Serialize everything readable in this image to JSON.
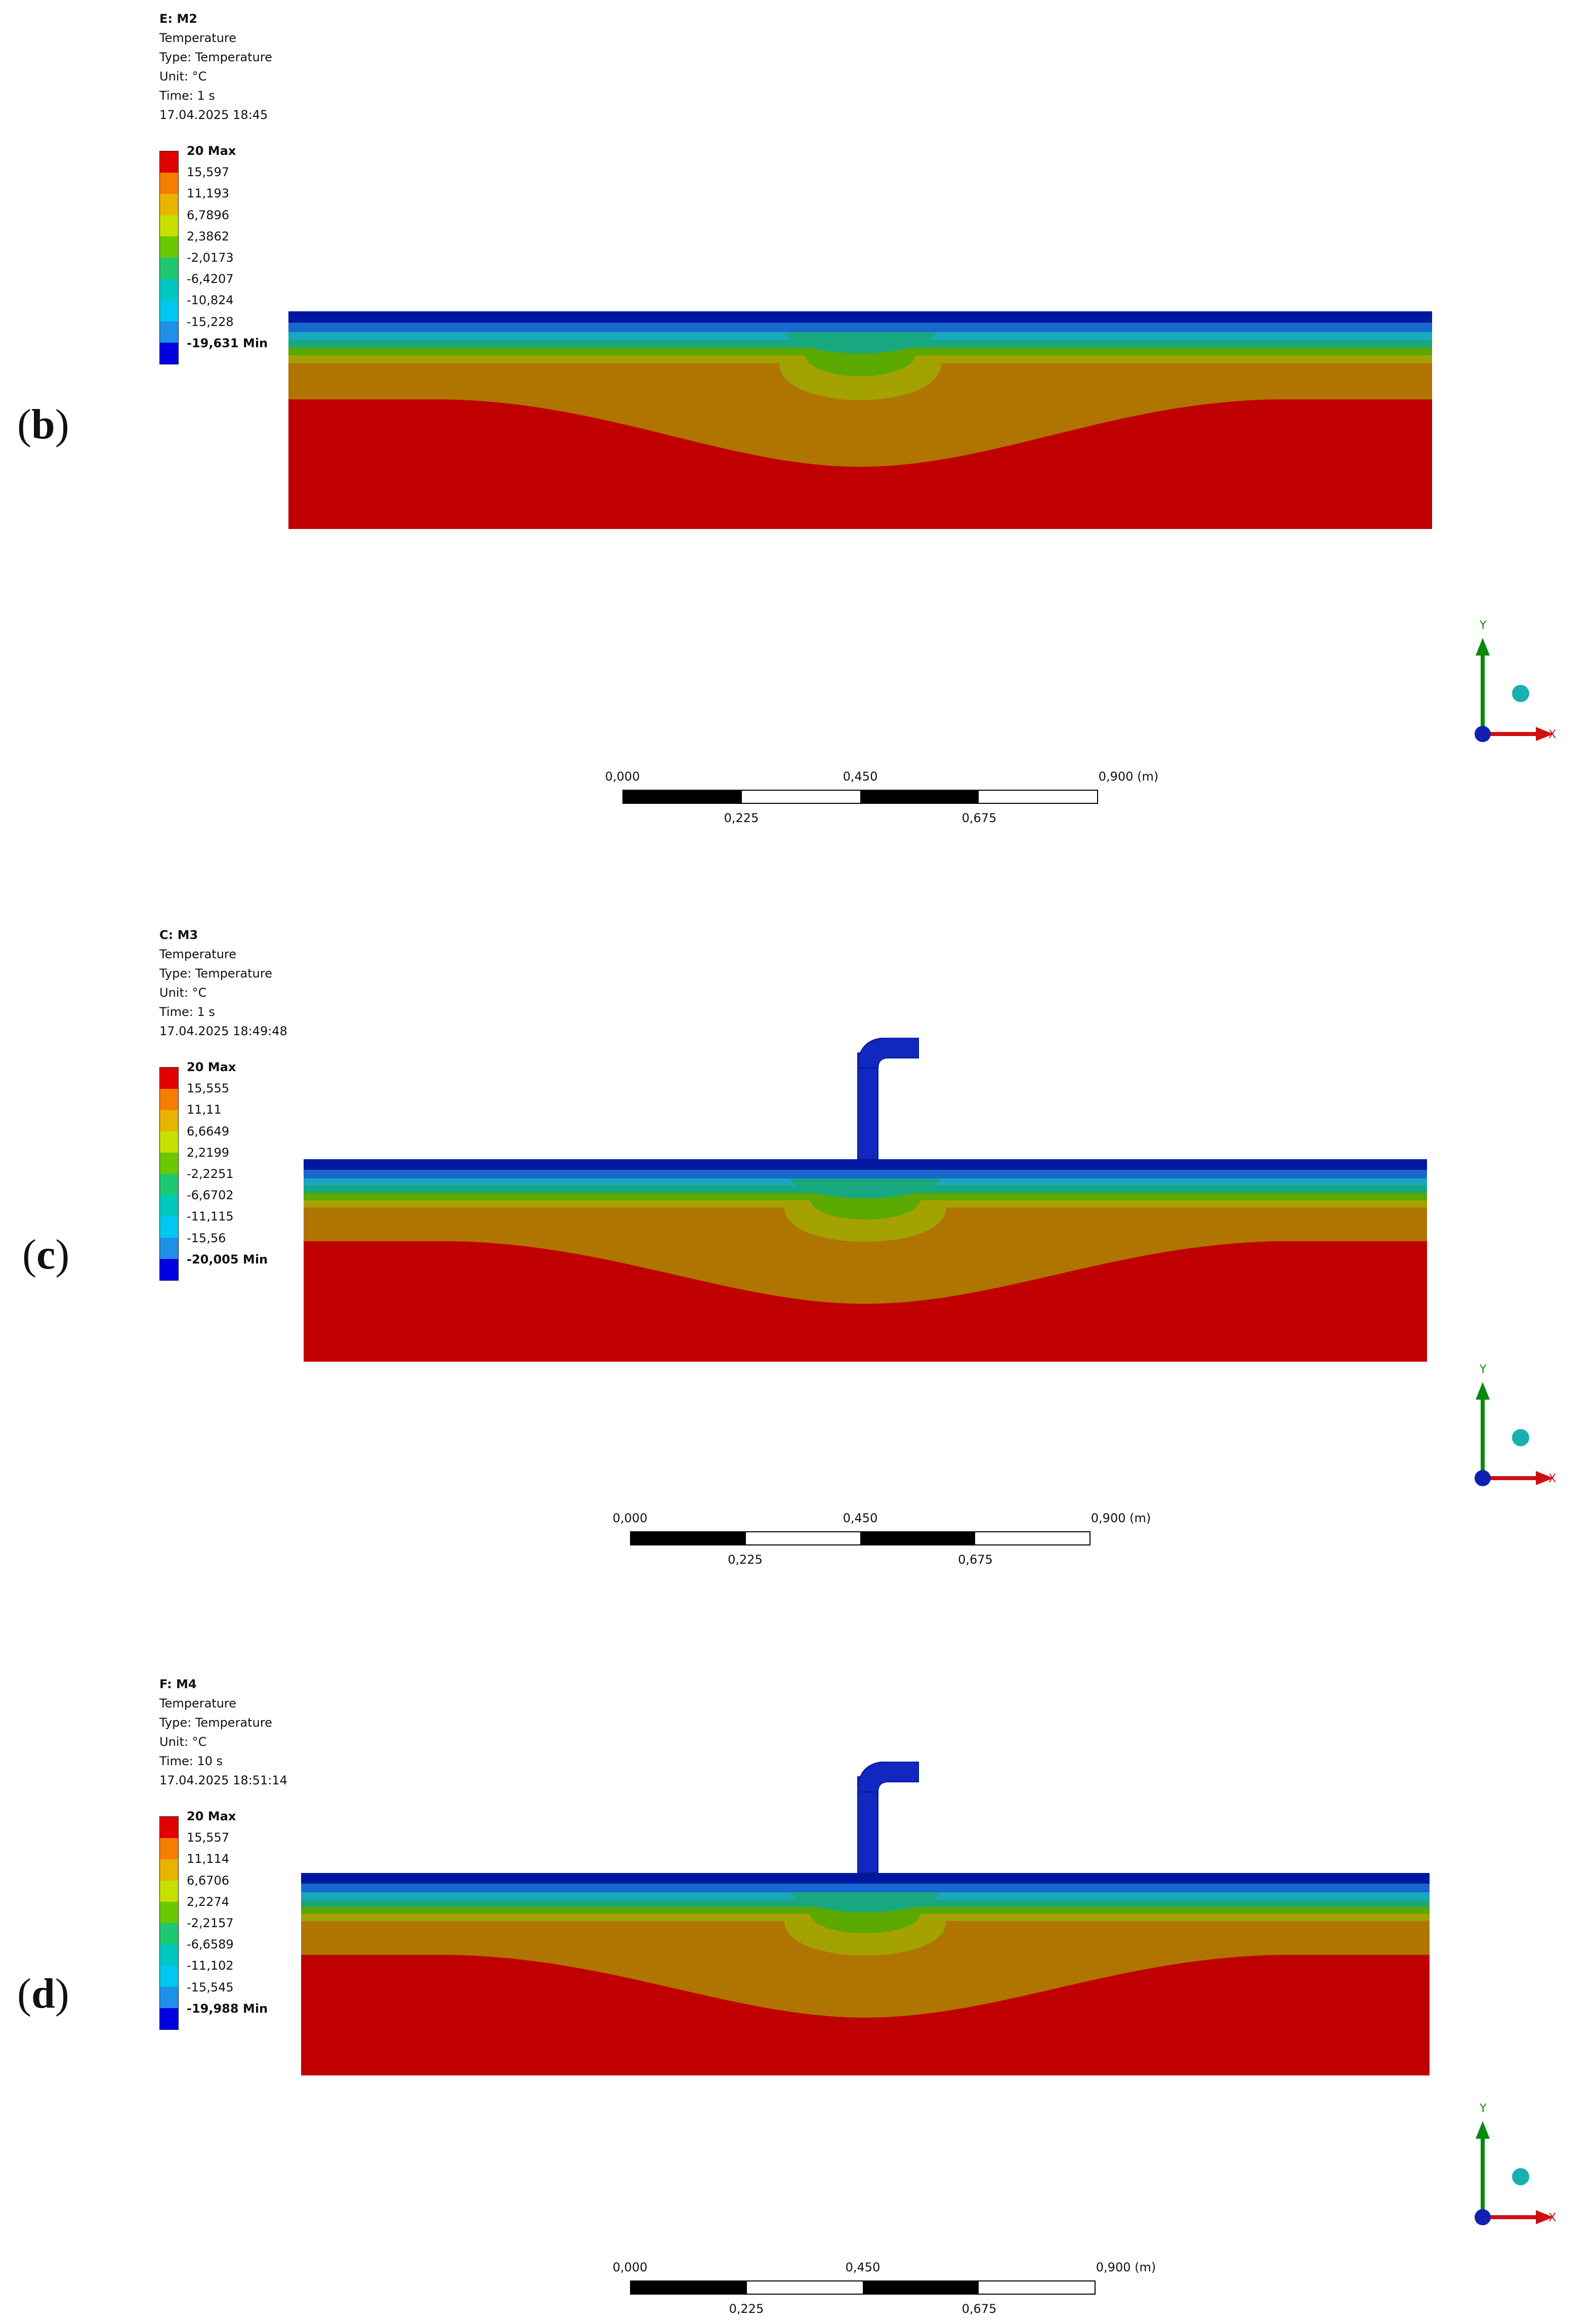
{
  "panels": [
    {
      "id": "b",
      "label_open": "(",
      "label_letter": "b",
      "label_close": ")",
      "title": "E: M2",
      "lines": [
        "Temperature",
        "Type: Temperature",
        "Unit: °C",
        "Time: 1 s",
        "17.04.2025 18:45"
      ],
      "legend": [
        "20 Max",
        "15,597",
        "11,193",
        "6,7896",
        "2,3862",
        "-2,0173",
        "-6,4207",
        "-10,824",
        "-15,228",
        "-19,631 Min"
      ],
      "has_pipe": false
    },
    {
      "id": "c",
      "label_open": "(",
      "label_letter": "c",
      "label_close": ")",
      "title": "C: M3",
      "lines": [
        "Temperature",
        "Type: Temperature",
        "Unit: °C",
        "Time: 1 s",
        "17.04.2025 18:49:48"
      ],
      "legend": [
        "20 Max",
        "15,555",
        "11,11",
        "6,6649",
        "2,2199",
        "-2,2251",
        "-6,6702",
        "-11,115",
        "-15,56",
        "-20,005 Min"
      ],
      "has_pipe": true
    },
    {
      "id": "d",
      "label_open": "(",
      "label_letter": "d",
      "label_close": ")",
      "title": "F: M4",
      "lines": [
        "Temperature",
        "Type: Temperature",
        "Unit: °C",
        "Time: 10 s",
        "17.04.2025 18:51:14"
      ],
      "legend": [
        "20 Max",
        "15,557",
        "11,114",
        "6,6706",
        "2,2274",
        "-2,2157",
        "-6,6589",
        "-11,102",
        "-15,545",
        "-19,988 Min"
      ],
      "has_pipe": true
    }
  ],
  "legend_colors": [
    "#e00000",
    "#f57d00",
    "#e8b400",
    "#c8e000",
    "#6ac800",
    "#1ec870",
    "#00c8c0",
    "#00c8f0",
    "#1e90e8",
    "#0000e0"
  ],
  "scale": {
    "top": [
      "0,000",
      "0,450",
      "0,900 (m)"
    ],
    "bottom": [
      "0,225",
      "0,675"
    ]
  },
  "triad": {
    "x": "X",
    "y": "Y"
  },
  "colors": {
    "red": "#c00000",
    "orange": "#b07400",
    "olive": "#a4a200",
    "green": "#5aa800",
    "teal": "#18a880",
    "cyan": "#18a8c0",
    "blue": "#1868d0",
    "navy": "#0018a0"
  }
}
